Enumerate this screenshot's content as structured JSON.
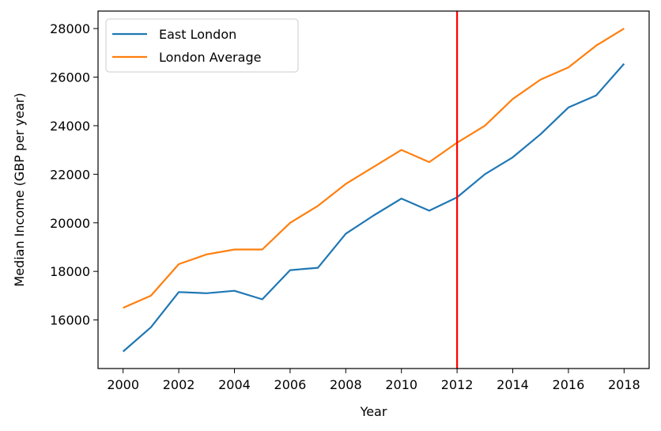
{
  "chart_data": {
    "type": "line",
    "title": "",
    "xlabel": "Year",
    "ylabel": "Median Income (GBP per year)",
    "x": [
      2000,
      2001,
      2002,
      2003,
      2004,
      2005,
      2006,
      2007,
      2008,
      2009,
      2010,
      2011,
      2012,
      2013,
      2014,
      2015,
      2016,
      2017,
      2018
    ],
    "series": [
      {
        "name": "East London",
        "color": "#1f77b4",
        "values": [
          14700,
          15700,
          17150,
          17100,
          17200,
          16850,
          18050,
          18150,
          19550,
          20300,
          21000,
          20500,
          21050,
          22000,
          22700,
          23650,
          24750,
          25250,
          26550
        ]
      },
      {
        "name": "London Average",
        "color": "#ff7f0e",
        "values": [
          16500,
          17000,
          18300,
          18700,
          18900,
          18900,
          20000,
          20700,
          21600,
          22300,
          23000,
          22500,
          23300,
          24000,
          25100,
          25900,
          26400,
          27300,
          28000
        ]
      }
    ],
    "xlim": [
      1999.1,
      2018.9
    ],
    "ylim": [
      14000,
      28720
    ],
    "xticks": [
      "2000",
      "2002",
      "2004",
      "2006",
      "2008",
      "2010",
      "2012",
      "2014",
      "2016",
      "2018"
    ],
    "yticks": [
      "16000",
      "18000",
      "20000",
      "22000",
      "24000",
      "26000",
      "28000"
    ],
    "vline": {
      "x": 2012,
      "color": "#ff0000"
    },
    "legend_position": "top-left",
    "grid": false
  }
}
